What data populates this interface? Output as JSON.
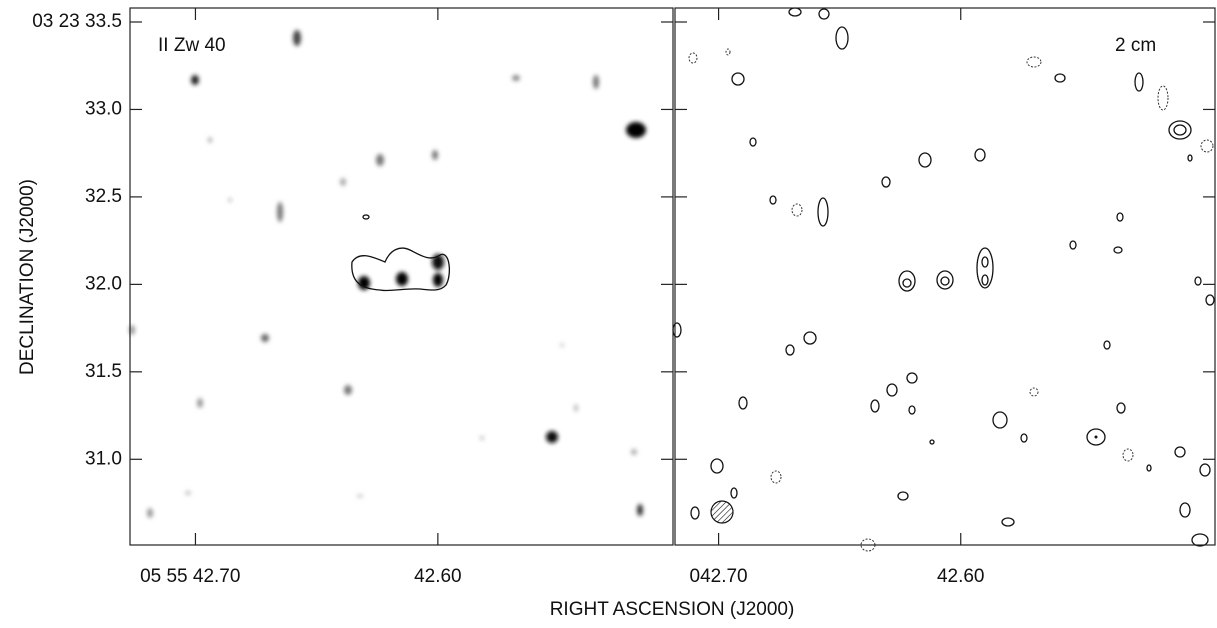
{
  "chart_data": [
    {
      "type": "image",
      "label": "II Zw 40",
      "x_label": "RIGHT ASCENSION (J2000)",
      "y_label": "DECLINATION (J2000)",
      "xlim": [
        42.727,
        42.503
      ],
      "ylim": [
        30.51,
        33.58
      ],
      "xticks": [
        {
          "value": 42.7,
          "label": "05 55 42.70"
        },
        {
          "value": 42.6,
          "label": "42.60"
        }
      ],
      "yticks": [
        {
          "value": 33.5,
          "label": "03 23 33.5"
        },
        {
          "value": 33,
          "label": "33.0"
        },
        {
          "value": 32.5,
          "label": "32.5"
        },
        {
          "value": 32,
          "label": "32.0"
        },
        {
          "value": 31.5,
          "label": "31.5"
        },
        {
          "value": 31,
          "label": "31.0"
        }
      ]
    },
    {
      "type": "contour",
      "label": "2 cm",
      "xlim": [
        42.718,
        42.495
      ],
      "ylim": [
        30.51,
        33.58
      ],
      "xticks": [
        {
          "value": 42.7,
          "label": "042.70"
        },
        {
          "value": 42.6,
          "label": "42.60"
        }
      ],
      "yticks": [
        33.5,
        33,
        32.5,
        32,
        31.5,
        31
      ]
    }
  ]
}
